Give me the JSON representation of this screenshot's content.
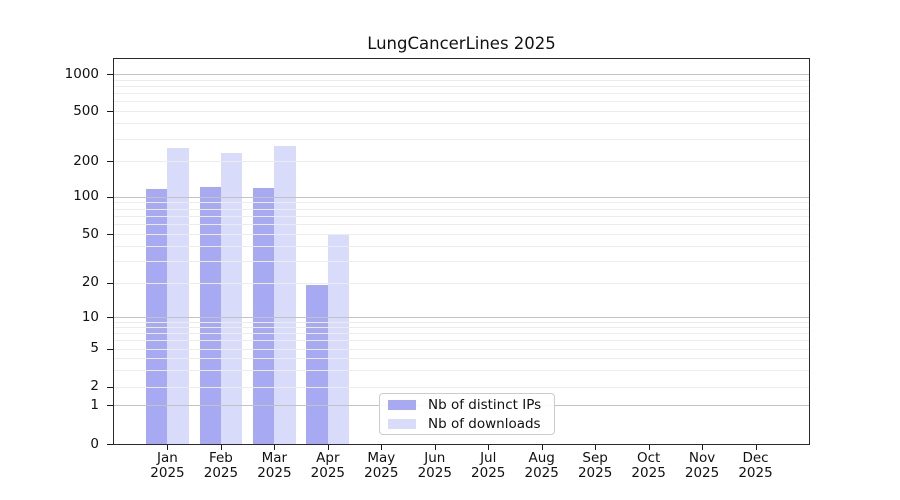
{
  "title": "LungCancerLines 2025",
  "chart_data": {
    "type": "bar",
    "title": "LungCancerLines 2025",
    "categories": [
      "Jan",
      "Feb",
      "Mar",
      "Apr",
      "May",
      "Jun",
      "Jul",
      "Aug",
      "Sep",
      "Oct",
      "Nov",
      "Dec"
    ],
    "year": "2025",
    "series": [
      {
        "name": "Nb of distinct IPs",
        "color": "#a7aaf2",
        "values": [
          115,
          121,
          119,
          19,
          null,
          null,
          null,
          null,
          null,
          null,
          null,
          null
        ]
      },
      {
        "name": "Nb of downloads",
        "color": "#d9dbfa",
        "values": [
          255,
          230,
          265,
          49,
          null,
          null,
          null,
          null,
          null,
          null,
          null,
          null
        ]
      }
    ],
    "xlabel": "",
    "ylabel": "",
    "yscale": "symlog-like",
    "yticks": [
      0,
      1,
      2,
      5,
      10,
      20,
      50,
      100,
      200,
      500,
      1000
    ],
    "ylim": [
      0,
      1300
    ],
    "grid": "on",
    "legend_position": "lower center"
  }
}
